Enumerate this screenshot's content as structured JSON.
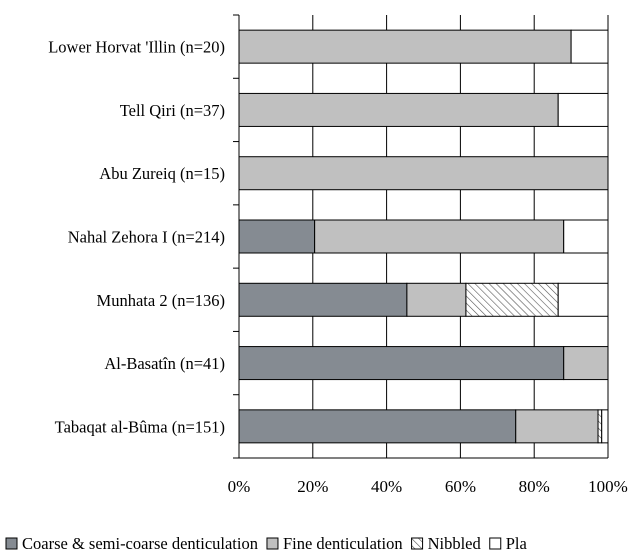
{
  "chart_data": {
    "type": "bar",
    "orientation": "horizontal",
    "stacked": "percent",
    "categories": [
      "Lower Horvat 'Illin (n=20)",
      "Tell Qiri (n=37)",
      "Abu Zureiq (n=15)",
      "Nahal Zehora I (n=214)",
      "Munhata 2 (n=136)",
      "Al-Basatîn (n=41)",
      "Tabaqat al-Bûma (n=151)"
    ],
    "series": [
      {
        "name": "Coarse & semi-coarse denticulation",
        "color": "#858b92",
        "pattern": "solid",
        "values": [
          0,
          0,
          0,
          20.5,
          45.5,
          88,
          75
        ]
      },
      {
        "name": "Fine denticulation",
        "color": "#c0c0c0",
        "pattern": "solid",
        "values": [
          90,
          86.5,
          100,
          67.5,
          16,
          12,
          22.3
        ]
      },
      {
        "name": "Nibbled",
        "color": "#ffffff",
        "pattern": "diagonal-hatch",
        "values": [
          0,
          0,
          0,
          0,
          25,
          0,
          1
        ]
      },
      {
        "name": "Pla",
        "color": "#ffffff",
        "pattern": "solid",
        "values": [
          10,
          13.5,
          0,
          12,
          13.5,
          0,
          1.7
        ]
      }
    ],
    "xticks": [
      "0%",
      "20%",
      "40%",
      "60%",
      "80%",
      "100%"
    ],
    "xlim": [
      0,
      100
    ],
    "grid": "vertical",
    "legend_position": "bottom",
    "title": "",
    "xlabel": "",
    "ylabel": ""
  }
}
